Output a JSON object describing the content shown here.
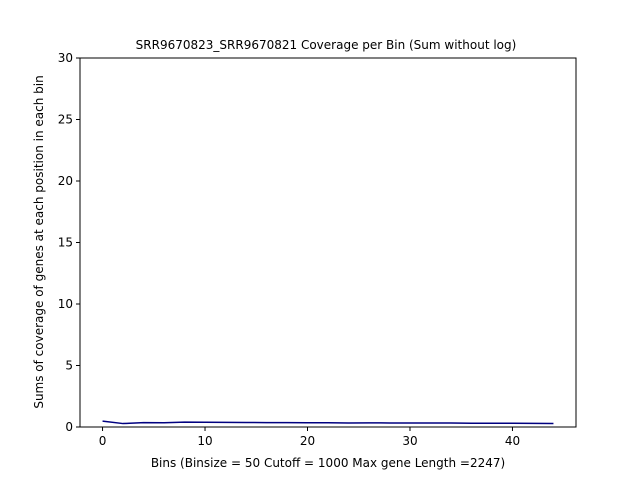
{
  "chart_data": {
    "type": "line",
    "title": "SRR9670823_SRR9670821 Coverage per Bin (Sum without log)",
    "xlabel": "Bins  (Binsize = 50 Cutoff = 1000 Max gene Length =2247)",
    "ylabel": "Sums of coverage of genes at each position in each bin",
    "xlim": [
      -2.2,
      46.2
    ],
    "ylim": [
      0,
      30
    ],
    "x_ticks": [
      0,
      10,
      20,
      30,
      40
    ],
    "y_ticks": [
      0,
      5,
      10,
      15,
      20,
      25,
      30
    ],
    "grid": false,
    "legend": "none",
    "series": [
      {
        "color": "#000080",
        "x": [
          0,
          2,
          4,
          6,
          8,
          10,
          12,
          14,
          16,
          18,
          20,
          22,
          24,
          26,
          28,
          30,
          32,
          34,
          36,
          38,
          40,
          42,
          44
        ],
        "y": [
          0.48,
          0.28,
          0.36,
          0.35,
          0.4,
          0.39,
          0.38,
          0.37,
          0.36,
          0.36,
          0.35,
          0.35,
          0.33,
          0.34,
          0.33,
          0.33,
          0.32,
          0.32,
          0.31,
          0.3,
          0.3,
          0.29,
          0.28
        ]
      }
    ]
  }
}
